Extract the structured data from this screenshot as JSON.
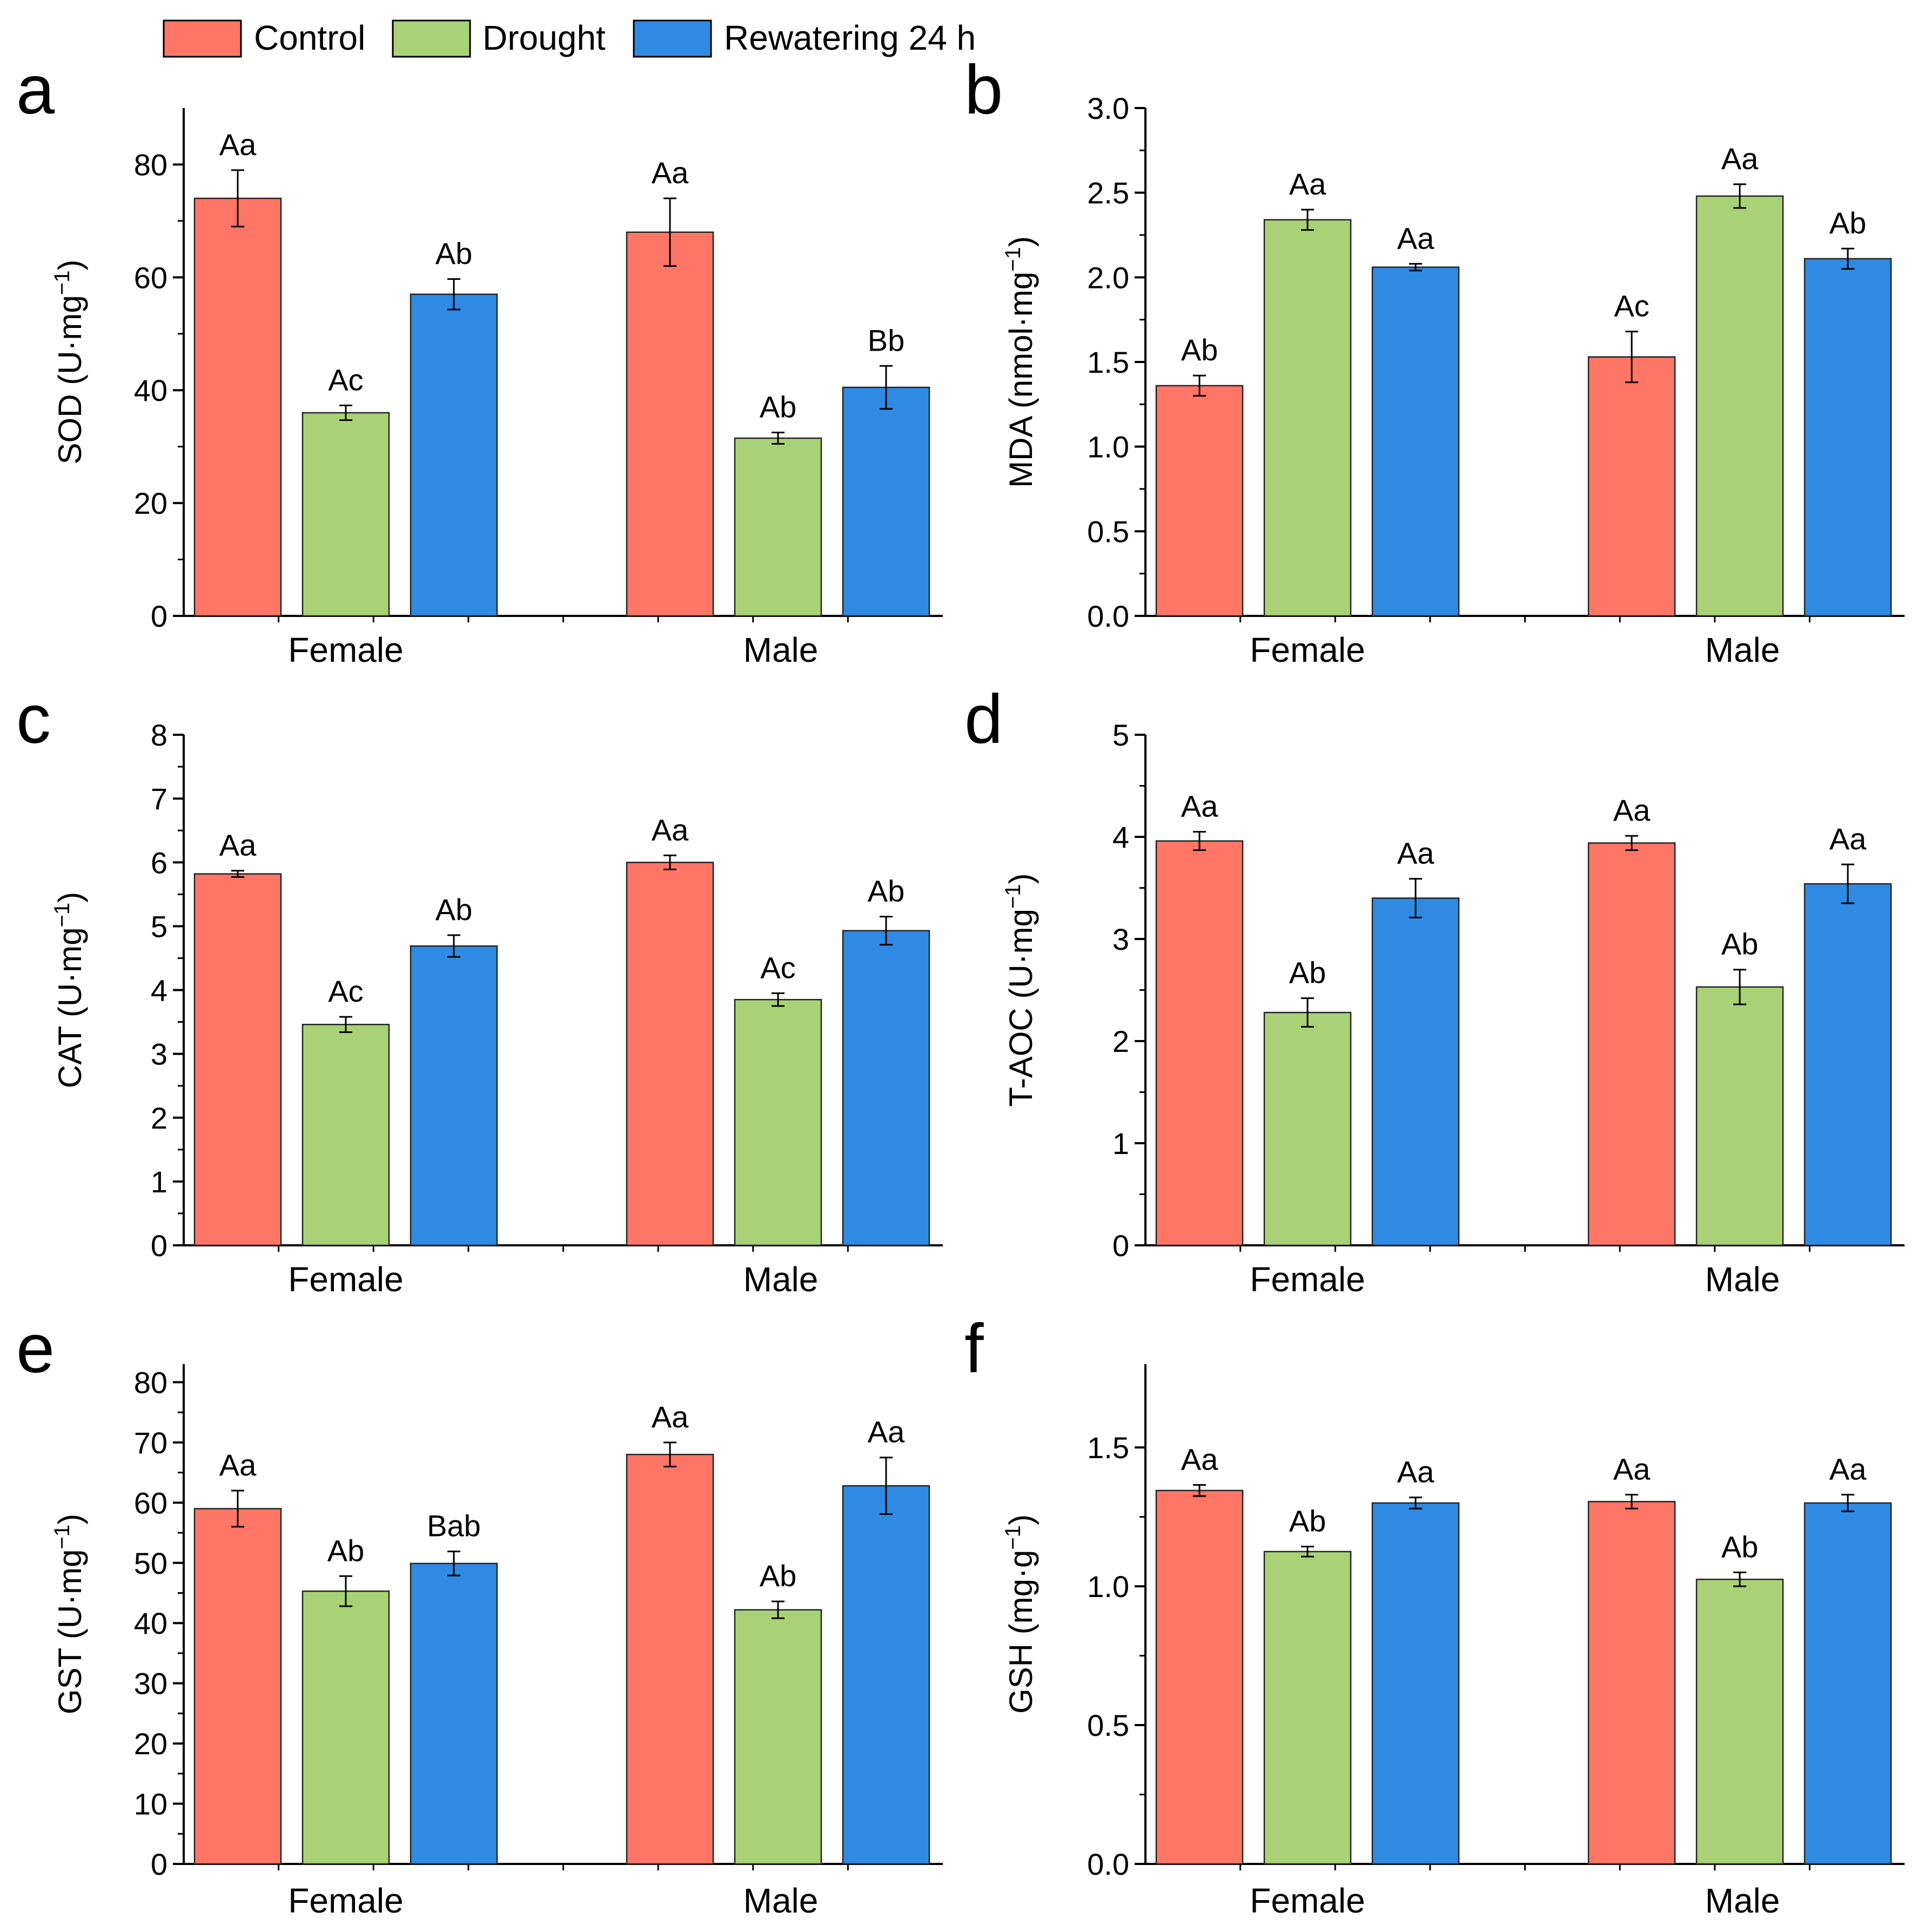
{
  "legend": [
    {
      "name": "Control",
      "color": "#FF7566"
    },
    {
      "name": "Drought",
      "color": "#A9D175"
    },
    {
      "name": "Rewatering 24 h",
      "color": "#2E8AE3"
    }
  ],
  "chart_data": [
    {
      "type": "bar",
      "panel": "a",
      "ylabel": "SOD (U·mg",
      "ylabel_sup": "−1",
      "ylabel_end": ")",
      "ylim": [
        0,
        90
      ],
      "yticks": [
        "0",
        "20",
        "40",
        "60",
        "80"
      ],
      "ytick_values": [
        0,
        20,
        40,
        60,
        80
      ],
      "categories": [
        "Female",
        "Male"
      ],
      "series": [
        {
          "name": "Control",
          "values": [
            74,
            68
          ],
          "errors": [
            5,
            6
          ],
          "labels": [
            "Aa",
            "Aa"
          ]
        },
        {
          "name": "Drought",
          "values": [
            36,
            31.5
          ],
          "errors": [
            1.3,
            1.0
          ],
          "labels": [
            "Ac",
            "Ab"
          ]
        },
        {
          "name": "Rewatering 24 h",
          "values": [
            57,
            40.5
          ],
          "errors": [
            2.7,
            3.8
          ],
          "labels": [
            "Ab",
            "Bb"
          ]
        }
      ]
    },
    {
      "type": "bar",
      "panel": "b",
      "ylabel": "MDA (nmol·mg",
      "ylabel_sup": "−1",
      "ylabel_end": ")",
      "ylim": [
        0,
        3
      ],
      "yticks": [
        "0.0",
        "0.5",
        "1.0",
        "1.5",
        "2.0",
        "2.5",
        "3.0"
      ],
      "ytick_values": [
        0,
        0.5,
        1.0,
        1.5,
        2.0,
        2.5,
        3.0
      ],
      "categories": [
        "Female",
        "Male"
      ],
      "series": [
        {
          "name": "Control",
          "values": [
            1.36,
            1.53
          ],
          "errors": [
            0.06,
            0.15
          ],
          "labels": [
            "Ab",
            "Ac"
          ]
        },
        {
          "name": "Drought",
          "values": [
            2.34,
            2.48
          ],
          "errors": [
            0.06,
            0.07
          ],
          "labels": [
            "Aa",
            "Aa"
          ]
        },
        {
          "name": "Rewatering 24 h",
          "values": [
            2.06,
            2.11
          ],
          "errors": [
            0.02,
            0.06
          ],
          "labels": [
            "Aa",
            "Ab"
          ]
        }
      ]
    },
    {
      "type": "bar",
      "panel": "c",
      "ylabel": "CAT (U·mg",
      "ylabel_sup": "−1",
      "ylabel_end": ")",
      "ylim": [
        0,
        8
      ],
      "yticks": [
        "0",
        "1",
        "2",
        "3",
        "4",
        "5",
        "6",
        "7",
        "8"
      ],
      "ytick_values": [
        0,
        1,
        2,
        3,
        4,
        5,
        6,
        7,
        8
      ],
      "categories": [
        "Female",
        "Male"
      ],
      "series": [
        {
          "name": "Control",
          "values": [
            5.82,
            6.0
          ],
          "errors": [
            0.05,
            0.11
          ],
          "labels": [
            "Aa",
            "Aa"
          ]
        },
        {
          "name": "Drought",
          "values": [
            3.46,
            3.85
          ],
          "errors": [
            0.12,
            0.1
          ],
          "labels": [
            "Ac",
            "Ac"
          ]
        },
        {
          "name": "Rewatering 24 h",
          "values": [
            4.69,
            4.93
          ],
          "errors": [
            0.17,
            0.22
          ],
          "labels": [
            "Ab",
            "Ab"
          ]
        }
      ]
    },
    {
      "type": "bar",
      "panel": "d",
      "ylabel": "T-AOC (U·mg",
      "ylabel_sup": "−1",
      "ylabel_end": ")",
      "ylim": [
        0,
        5
      ],
      "yticks": [
        "0",
        "1",
        "2",
        "3",
        "4",
        "5"
      ],
      "ytick_values": [
        0,
        1,
        2,
        3,
        4,
        5
      ],
      "categories": [
        "Female",
        "Male"
      ],
      "series": [
        {
          "name": "Control",
          "values": [
            3.96,
            3.94
          ],
          "errors": [
            0.09,
            0.07
          ],
          "labels": [
            "Aa",
            "Aa"
          ]
        },
        {
          "name": "Drought",
          "values": [
            2.28,
            2.53
          ],
          "errors": [
            0.14,
            0.17
          ],
          "labels": [
            "Ab",
            "Ab"
          ]
        },
        {
          "name": "Rewatering 24 h",
          "values": [
            3.4,
            3.54
          ],
          "errors": [
            0.19,
            0.19
          ],
          "labels": [
            "Aa",
            "Aa"
          ]
        }
      ]
    },
    {
      "type": "bar",
      "panel": "e",
      "ylabel": "GST (U·mg",
      "ylabel_sup": "−1",
      "ylabel_end": ")",
      "ylim": [
        0,
        83
      ],
      "yticks": [
        "0",
        "10",
        "20",
        "30",
        "40",
        "50",
        "60",
        "70",
        "80"
      ],
      "ytick_values": [
        0,
        10,
        20,
        30,
        40,
        50,
        60,
        70,
        80
      ],
      "categories": [
        "Female",
        "Male"
      ],
      "series": [
        {
          "name": "Control",
          "values": [
            59,
            68
          ],
          "errors": [
            3,
            2
          ],
          "labels": [
            "Aa",
            "Aa"
          ]
        },
        {
          "name": "Drought",
          "values": [
            45.3,
            42.2
          ],
          "errors": [
            2.5,
            1.4
          ],
          "labels": [
            "Ab",
            "Ab"
          ]
        },
        {
          "name": "Rewatering 24 h",
          "values": [
            49.9,
            62.8
          ],
          "errors": [
            2.0,
            4.7
          ],
          "labels": [
            "Bab",
            "Aa"
          ]
        }
      ]
    },
    {
      "type": "bar",
      "panel": "f",
      "ylabel": "GSH (mg·g",
      "ylabel_sup": "−1",
      "ylabel_end": ")",
      "ylim": [
        0,
        1.8
      ],
      "yticks": [
        "0.0",
        "0.5",
        "1.0",
        "1.5"
      ],
      "ytick_values": [
        0,
        0.5,
        1.0,
        1.5
      ],
      "categories": [
        "Female",
        "Male"
      ],
      "series": [
        {
          "name": "Control",
          "values": [
            1.345,
            1.305
          ],
          "errors": [
            0.02,
            0.025
          ],
          "labels": [
            "Aa",
            "Aa"
          ]
        },
        {
          "name": "Drought",
          "values": [
            1.125,
            1.025
          ],
          "errors": [
            0.018,
            0.025
          ],
          "labels": [
            "Ab",
            "Ab"
          ]
        },
        {
          "name": "Rewatering 24 h",
          "values": [
            1.3,
            1.3
          ],
          "errors": [
            0.02,
            0.03
          ],
          "labels": [
            "Aa",
            "Aa"
          ]
        }
      ]
    }
  ]
}
